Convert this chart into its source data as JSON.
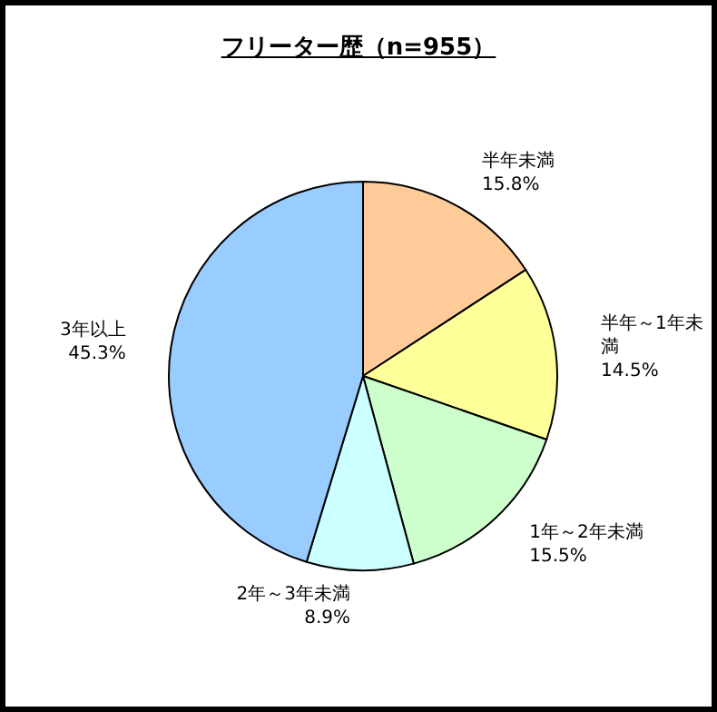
{
  "chart_data": {
    "type": "pie",
    "title": "フリーター歴（n=955）",
    "categories": [
      "半年未満",
      "半年～1年未満",
      "1年～2年未満",
      "2年～3年未満",
      "3年以上"
    ],
    "values": [
      15.8,
      14.5,
      15.5,
      8.9,
      45.3
    ],
    "value_labels": [
      "15.8%",
      "14.5%",
      "15.5%",
      "8.9%",
      "45.3%"
    ],
    "colors": [
      "#ffcc99",
      "#ffff99",
      "#ccffcc",
      "#ccffff",
      "#99ccff"
    ]
  }
}
